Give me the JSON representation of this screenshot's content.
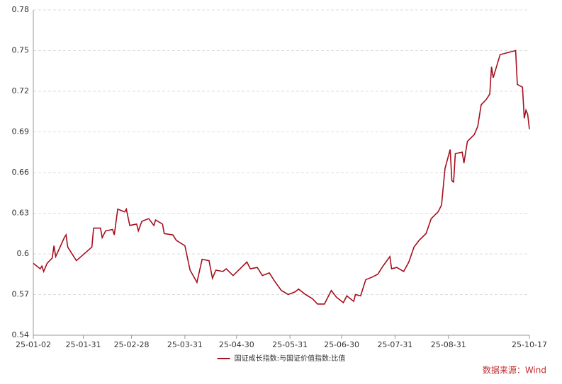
{
  "chart_data": {
    "type": "line",
    "x": [
      "25-01-02",
      "25-01-06",
      "25-01-07",
      "25-01-08",
      "25-01-10",
      "25-01-13",
      "25-01-14",
      "25-01-15",
      "25-01-20",
      "25-01-21",
      "25-01-22",
      "25-01-27",
      "25-02-05",
      "25-02-06",
      "25-02-10",
      "25-02-11",
      "25-02-13",
      "25-02-17",
      "25-02-18",
      "25-02-20",
      "25-02-24",
      "25-02-25",
      "25-02-27",
      "25-03-03",
      "25-03-04",
      "25-03-06",
      "25-03-10",
      "25-03-13",
      "25-03-14",
      "25-03-18",
      "25-03-19",
      "25-03-24",
      "25-03-26",
      "25-03-31",
      "25-04-03",
      "25-04-07",
      "25-04-10",
      "25-04-14",
      "25-04-16",
      "25-04-18",
      "25-04-22",
      "25-04-24",
      "25-04-28",
      "25-05-06",
      "25-05-08",
      "25-05-12",
      "25-05-15",
      "25-05-19",
      "25-05-22",
      "25-05-26",
      "25-05-30",
      "25-06-03",
      "25-06-05",
      "25-06-09",
      "25-06-13",
      "25-06-16",
      "25-06-20",
      "25-06-24",
      "25-06-27",
      "25-07-01",
      "25-07-03",
      "25-07-07",
      "25-07-08",
      "25-07-11",
      "25-07-14",
      "25-07-18",
      "25-07-21",
      "25-07-24",
      "25-07-28",
      "25-07-29",
      "25-08-01",
      "25-08-05",
      "25-08-08",
      "25-08-11",
      "25-08-14",
      "25-08-18",
      "25-08-21",
      "25-08-25",
      "25-08-27",
      "25-08-29",
      "25-09-01",
      "25-09-02",
      "25-09-03",
      "25-09-04",
      "25-09-08",
      "25-09-09",
      "25-09-11",
      "25-09-15",
      "25-09-17",
      "25-09-19",
      "25-09-22",
      "25-09-24",
      "25-09-25",
      "25-09-26",
      "25-09-30",
      "25-10-09",
      "25-10-10",
      "25-10-13",
      "25-10-14",
      "25-10-15",
      "25-10-16",
      "25-10-17"
    ],
    "series": [
      {
        "name": "国证成长指数:与国证价值指数:比值",
        "color": "#a50f1e",
        "values": [
          0.593,
          0.589,
          0.591,
          0.587,
          0.593,
          0.597,
          0.606,
          0.598,
          0.612,
          0.614,
          0.605,
          0.595,
          0.605,
          0.619,
          0.619,
          0.612,
          0.617,
          0.618,
          0.614,
          0.633,
          0.631,
          0.633,
          0.621,
          0.622,
          0.617,
          0.624,
          0.626,
          0.621,
          0.625,
          0.622,
          0.615,
          0.614,
          0.61,
          0.606,
          0.588,
          0.579,
          0.596,
          0.595,
          0.582,
          0.588,
          0.587,
          0.589,
          0.584,
          0.594,
          0.589,
          0.59,
          0.584,
          0.586,
          0.58,
          0.573,
          0.57,
          0.572,
          0.574,
          0.57,
          0.567,
          0.563,
          0.563,
          0.573,
          0.568,
          0.564,
          0.569,
          0.565,
          0.57,
          0.569,
          0.581,
          0.583,
          0.585,
          0.591,
          0.598,
          0.589,
          0.59,
          0.587,
          0.594,
          0.605,
          0.61,
          0.615,
          0.626,
          0.631,
          0.636,
          0.663,
          0.677,
          0.654,
          0.653,
          0.674,
          0.675,
          0.667,
          0.683,
          0.688,
          0.694,
          0.71,
          0.714,
          0.718,
          0.738,
          0.73,
          0.747,
          0.75,
          0.725,
          0.723,
          0.7,
          0.706,
          0.703,
          0.692
        ]
      }
    ],
    "xlim": [
      "25-01-02",
      "25-10-17"
    ],
    "xticks": [
      "25-01-02",
      "25-01-31",
      "25-02-28",
      "25-03-31",
      "25-04-30",
      "25-05-31",
      "25-06-30",
      "25-07-31",
      "25-08-31",
      "25-10-17"
    ],
    "ylim": [
      0.54,
      0.78
    ],
    "yticks": [
      0.54,
      0.57,
      0.6,
      0.63,
      0.66,
      0.69,
      0.72,
      0.75,
      0.78
    ],
    "grid": true,
    "legend": "bottom",
    "source": "数据来源：Wind"
  }
}
